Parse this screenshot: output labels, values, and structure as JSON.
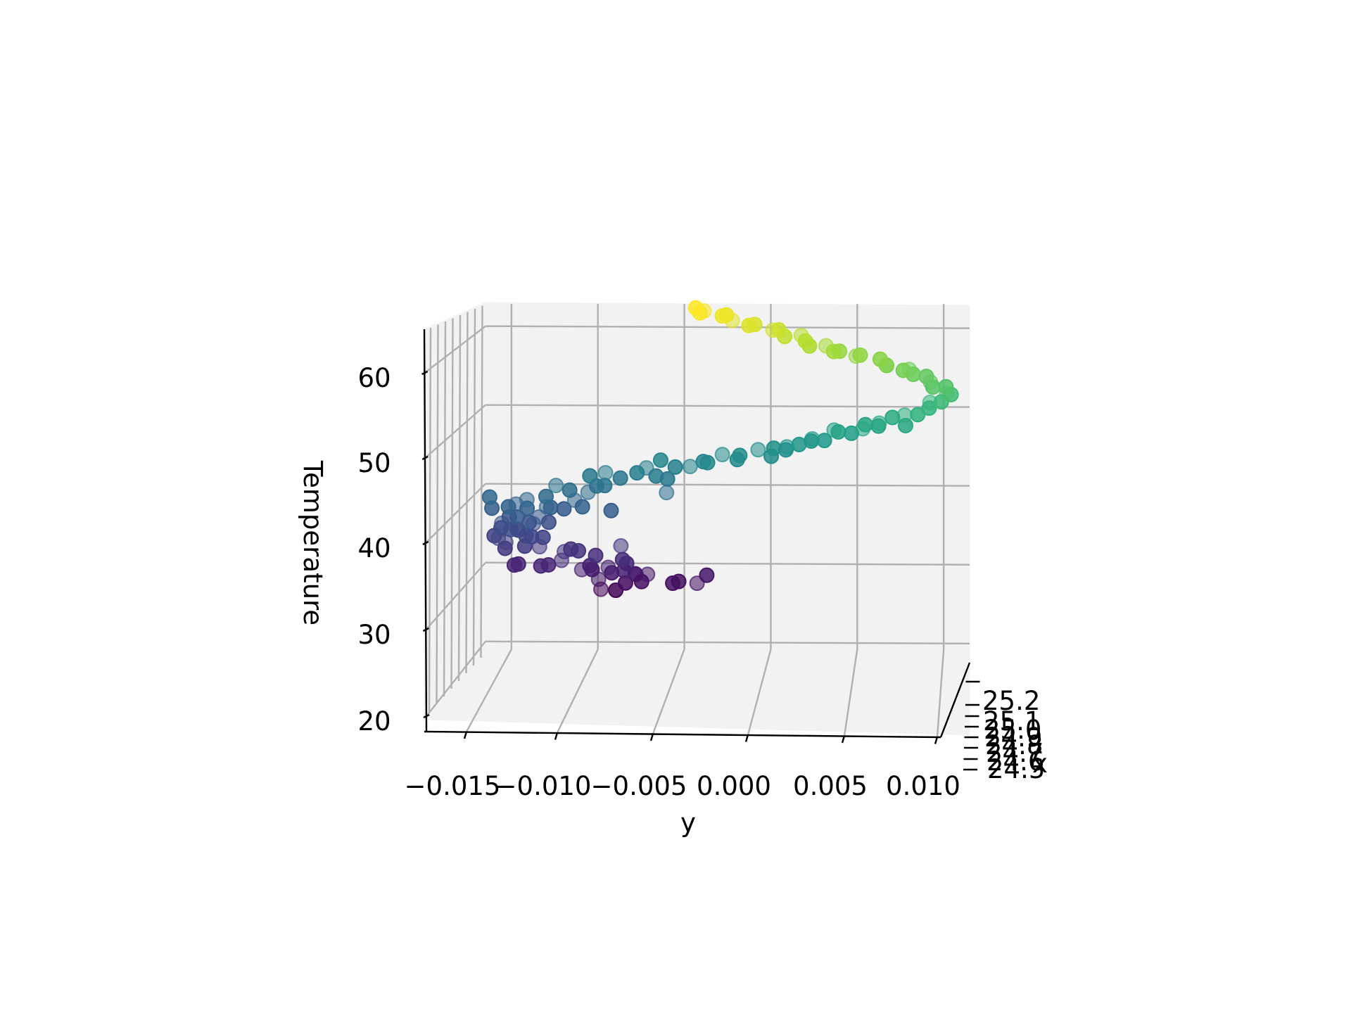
{
  "chart_data": {
    "type": "scatter3d",
    "title": "",
    "xlabel": "x",
    "ylabel": "y",
    "zlabel": "Temperature",
    "colormap": "viridis",
    "x_ticks": [
      "24.5",
      "24.6",
      "24.7",
      "24.8",
      "24.9",
      "25.0",
      "25.1",
      "25.2"
    ],
    "y_ticks": [
      "−0.015",
      "−0.010",
      "−0.005",
      "0.000",
      "0.005",
      "0.010"
    ],
    "z_ticks": [
      "20",
      "30",
      "40",
      "50",
      "60"
    ],
    "ylim": [
      -0.0165,
      0.0115
    ],
    "zlim": [
      19,
      63
    ],
    "points": [
      {
        "y": -0.0095,
        "z": 26.3
      },
      {
        "y": -0.0089,
        "z": 26.6
      },
      {
        "y": -0.0086,
        "z": 27.2
      },
      {
        "y": -0.0097,
        "z": 28.1
      },
      {
        "y": -0.0092,
        "z": 28.6
      },
      {
        "y": -0.0081,
        "z": 28.9
      },
      {
        "y": -0.0076,
        "z": 28.5
      },
      {
        "y": -0.0104,
        "z": 28.8
      },
      {
        "y": -0.0078,
        "z": 27.7
      },
      {
        "y": -0.007,
        "z": 28.3
      },
      {
        "y": -0.0058,
        "z": 27.6
      },
      {
        "y": -0.005,
        "z": 27.5
      },
      {
        "y": -0.0042,
        "z": 27.7
      },
      {
        "y": -0.0039,
        "z": 28.4
      },
      {
        "y": -0.0102,
        "z": 29.3
      },
      {
        "y": -0.0094,
        "z": 29.5
      },
      {
        "y": -0.0086,
        "z": 29.7
      },
      {
        "y": -0.0083,
        "z": 29.2
      },
      {
        "y": -0.011,
        "z": 29.0
      },
      {
        "y": -0.0089,
        "z": 30.7
      },
      {
        "y": -0.01,
        "z": 30.9
      },
      {
        "y": -0.0088,
        "z": 31.8
      },
      {
        "y": -0.0108,
        "z": 31.6
      },
      {
        "y": -0.0115,
        "z": 31.5
      },
      {
        "y": -0.0123,
        "z": 30.5
      },
      {
        "y": -0.0126,
        "z": 29.6
      },
      {
        "y": -0.0133,
        "z": 29.9
      },
      {
        "y": -0.0122,
        "z": 31.4
      },
      {
        "y": -0.0144,
        "z": 29.5
      },
      {
        "y": -0.0149,
        "z": 29.8
      },
      {
        "y": -0.0137,
        "z": 31.8
      },
      {
        "y": -0.0141,
        "z": 32.3
      },
      {
        "y": -0.0155,
        "z": 31.7
      },
      {
        "y": -0.015,
        "z": 32.9
      },
      {
        "y": -0.0141,
        "z": 33.4
      },
      {
        "y": -0.0148,
        "z": 33.8
      },
      {
        "y": -0.0155,
        "z": 33.2
      },
      {
        "y": -0.016,
        "z": 33.2
      },
      {
        "y": -0.0153,
        "z": 34.4
      },
      {
        "y": -0.0145,
        "z": 34.2
      },
      {
        "y": -0.0139,
        "z": 33.6
      },
      {
        "y": -0.0135,
        "z": 33.2
      },
      {
        "y": -0.0136,
        "z": 34.6
      },
      {
        "y": -0.0141,
        "z": 35.2
      },
      {
        "y": -0.0148,
        "z": 35.6
      },
      {
        "y": -0.0155,
        "z": 35.2
      },
      {
        "y": -0.0158,
        "z": 34.3
      },
      {
        "y": -0.0144,
        "z": 36.1
      },
      {
        "y": -0.0134,
        "z": 35.8
      },
      {
        "y": -0.0131,
        "z": 34.8
      },
      {
        "y": -0.0139,
        "z": 37.0
      },
      {
        "y": -0.0148,
        "z": 37.2
      },
      {
        "y": -0.0155,
        "z": 37.3
      },
      {
        "y": -0.016,
        "z": 36.8
      },
      {
        "y": -0.0131,
        "z": 37.4
      },
      {
        "y": -0.0124,
        "z": 37.0
      },
      {
        "y": -0.0119,
        "z": 36.5
      },
      {
        "y": -0.0143,
        "z": 38.1
      },
      {
        "y": -0.016,
        "z": 38.1
      },
      {
        "y": -0.013,
        "z": 38.6
      },
      {
        "y": -0.0116,
        "z": 37.8
      },
      {
        "y": -0.0107,
        "z": 37.4
      },
      {
        "y": -0.0093,
        "z": 36.6
      },
      {
        "y": -0.0109,
        "z": 38.6
      },
      {
        "y": -0.0115,
        "z": 39.3
      },
      {
        "y": -0.0102,
        "z": 39.5
      },
      {
        "y": -0.0121,
        "z": 40.0
      },
      {
        "y": -0.0104,
        "z": 40.9
      },
      {
        "y": -0.0098,
        "z": 40.1
      },
      {
        "y": -0.0093,
        "z": 41.4
      },
      {
        "y": -0.0087,
        "z": 40.4
      },
      {
        "y": -0.008,
        "z": 41.5
      },
      {
        "y": -0.007,
        "z": 41.8
      },
      {
        "y": -0.0067,
        "z": 41.2
      },
      {
        "y": -0.0063,
        "z": 40.5
      },
      {
        "y": -0.0059,
        "z": 39.2
      },
      {
        "y": -0.0065,
        "z": 43.0
      },
      {
        "y": -0.0052,
        "z": 41.8
      },
      {
        "y": -0.0046,
        "z": 42.3
      },
      {
        "y": -0.0041,
        "z": 42.6
      },
      {
        "y": -0.0034,
        "z": 42.9
      },
      {
        "y": -0.0028,
        "z": 43.6
      },
      {
        "y": -0.0022,
        "z": 43.4
      },
      {
        "y": -0.0016,
        "z": 43.6
      },
      {
        "y": -0.0008,
        "z": 44.0
      },
      {
        "y": -0.0003,
        "z": 43.6
      },
      {
        "y": 0.0003,
        "z": 44.3
      },
      {
        "y": 0.0008,
        "z": 44.9
      },
      {
        "y": 0.0012,
        "z": 44.2
      },
      {
        "y": 0.0017,
        "z": 45.3
      },
      {
        "y": 0.0022,
        "z": 45.7
      },
      {
        "y": 0.0026,
        "z": 45.1
      },
      {
        "y": 0.0031,
        "z": 45.6
      },
      {
        "y": 0.0034,
        "z": 46.6
      },
      {
        "y": 0.0041,
        "z": 46.8
      },
      {
        "y": 0.0046,
        "z": 46.3
      },
      {
        "y": 0.005,
        "z": 47.3
      },
      {
        "y": 0.0056,
        "z": 47.5
      },
      {
        "y": 0.0061,
        "z": 47.0
      },
      {
        "y": 0.0066,
        "z": 47.8
      },
      {
        "y": 0.0071,
        "z": 48.2
      },
      {
        "y": 0.0076,
        "z": 47.6
      },
      {
        "y": 0.008,
        "z": 48.6
      },
      {
        "y": 0.0085,
        "z": 49.1
      },
      {
        "y": 0.0089,
        "z": 49.6
      },
      {
        "y": 0.0094,
        "z": 50.0
      },
      {
        "y": 0.0098,
        "z": 50.5
      },
      {
        "y": 0.0101,
        "z": 51.1
      },
      {
        "y": 0.0103,
        "z": 51.7
      },
      {
        "y": 0.01,
        "z": 52.2
      },
      {
        "y": 0.0097,
        "z": 52.6
      },
      {
        "y": 0.0093,
        "z": 52.9
      },
      {
        "y": 0.0088,
        "z": 53.3
      },
      {
        "y": 0.0085,
        "z": 54.0
      },
      {
        "y": 0.008,
        "z": 54.3
      },
      {
        "y": 0.0074,
        "z": 54.6
      },
      {
        "y": 0.0069,
        "z": 54.9
      },
      {
        "y": 0.0066,
        "z": 55.4
      },
      {
        "y": 0.006,
        "z": 55.8
      },
      {
        "y": 0.0053,
        "z": 56.0
      },
      {
        "y": 0.0048,
        "z": 56.3
      },
      {
        "y": 0.0043,
        "z": 56.6
      },
      {
        "y": 0.0037,
        "z": 57.0
      },
      {
        "y": 0.003,
        "z": 57.4
      },
      {
        "y": 0.0025,
        "z": 57.8
      },
      {
        "y": 0.002,
        "z": 58.1
      },
      {
        "y": 0.0015,
        "z": 58.5
      },
      {
        "y": 0.001,
        "z": 58.8
      },
      {
        "y": 0.0004,
        "z": 59.3
      },
      {
        "y": -0.0002,
        "z": 59.7
      },
      {
        "y": -0.0008,
        "z": 60.1
      },
      {
        "y": -0.0014,
        "z": 60.4
      },
      {
        "y": -0.0019,
        "z": 60.7
      },
      {
        "y": -0.0025,
        "z": 61.1
      },
      {
        "y": -0.003,
        "z": 61.4
      },
      {
        "y": -0.0036,
        "z": 61.7
      },
      {
        "y": -0.0041,
        "z": 61.9
      },
      {
        "y": -0.0046,
        "z": 62.2
      }
    ]
  }
}
